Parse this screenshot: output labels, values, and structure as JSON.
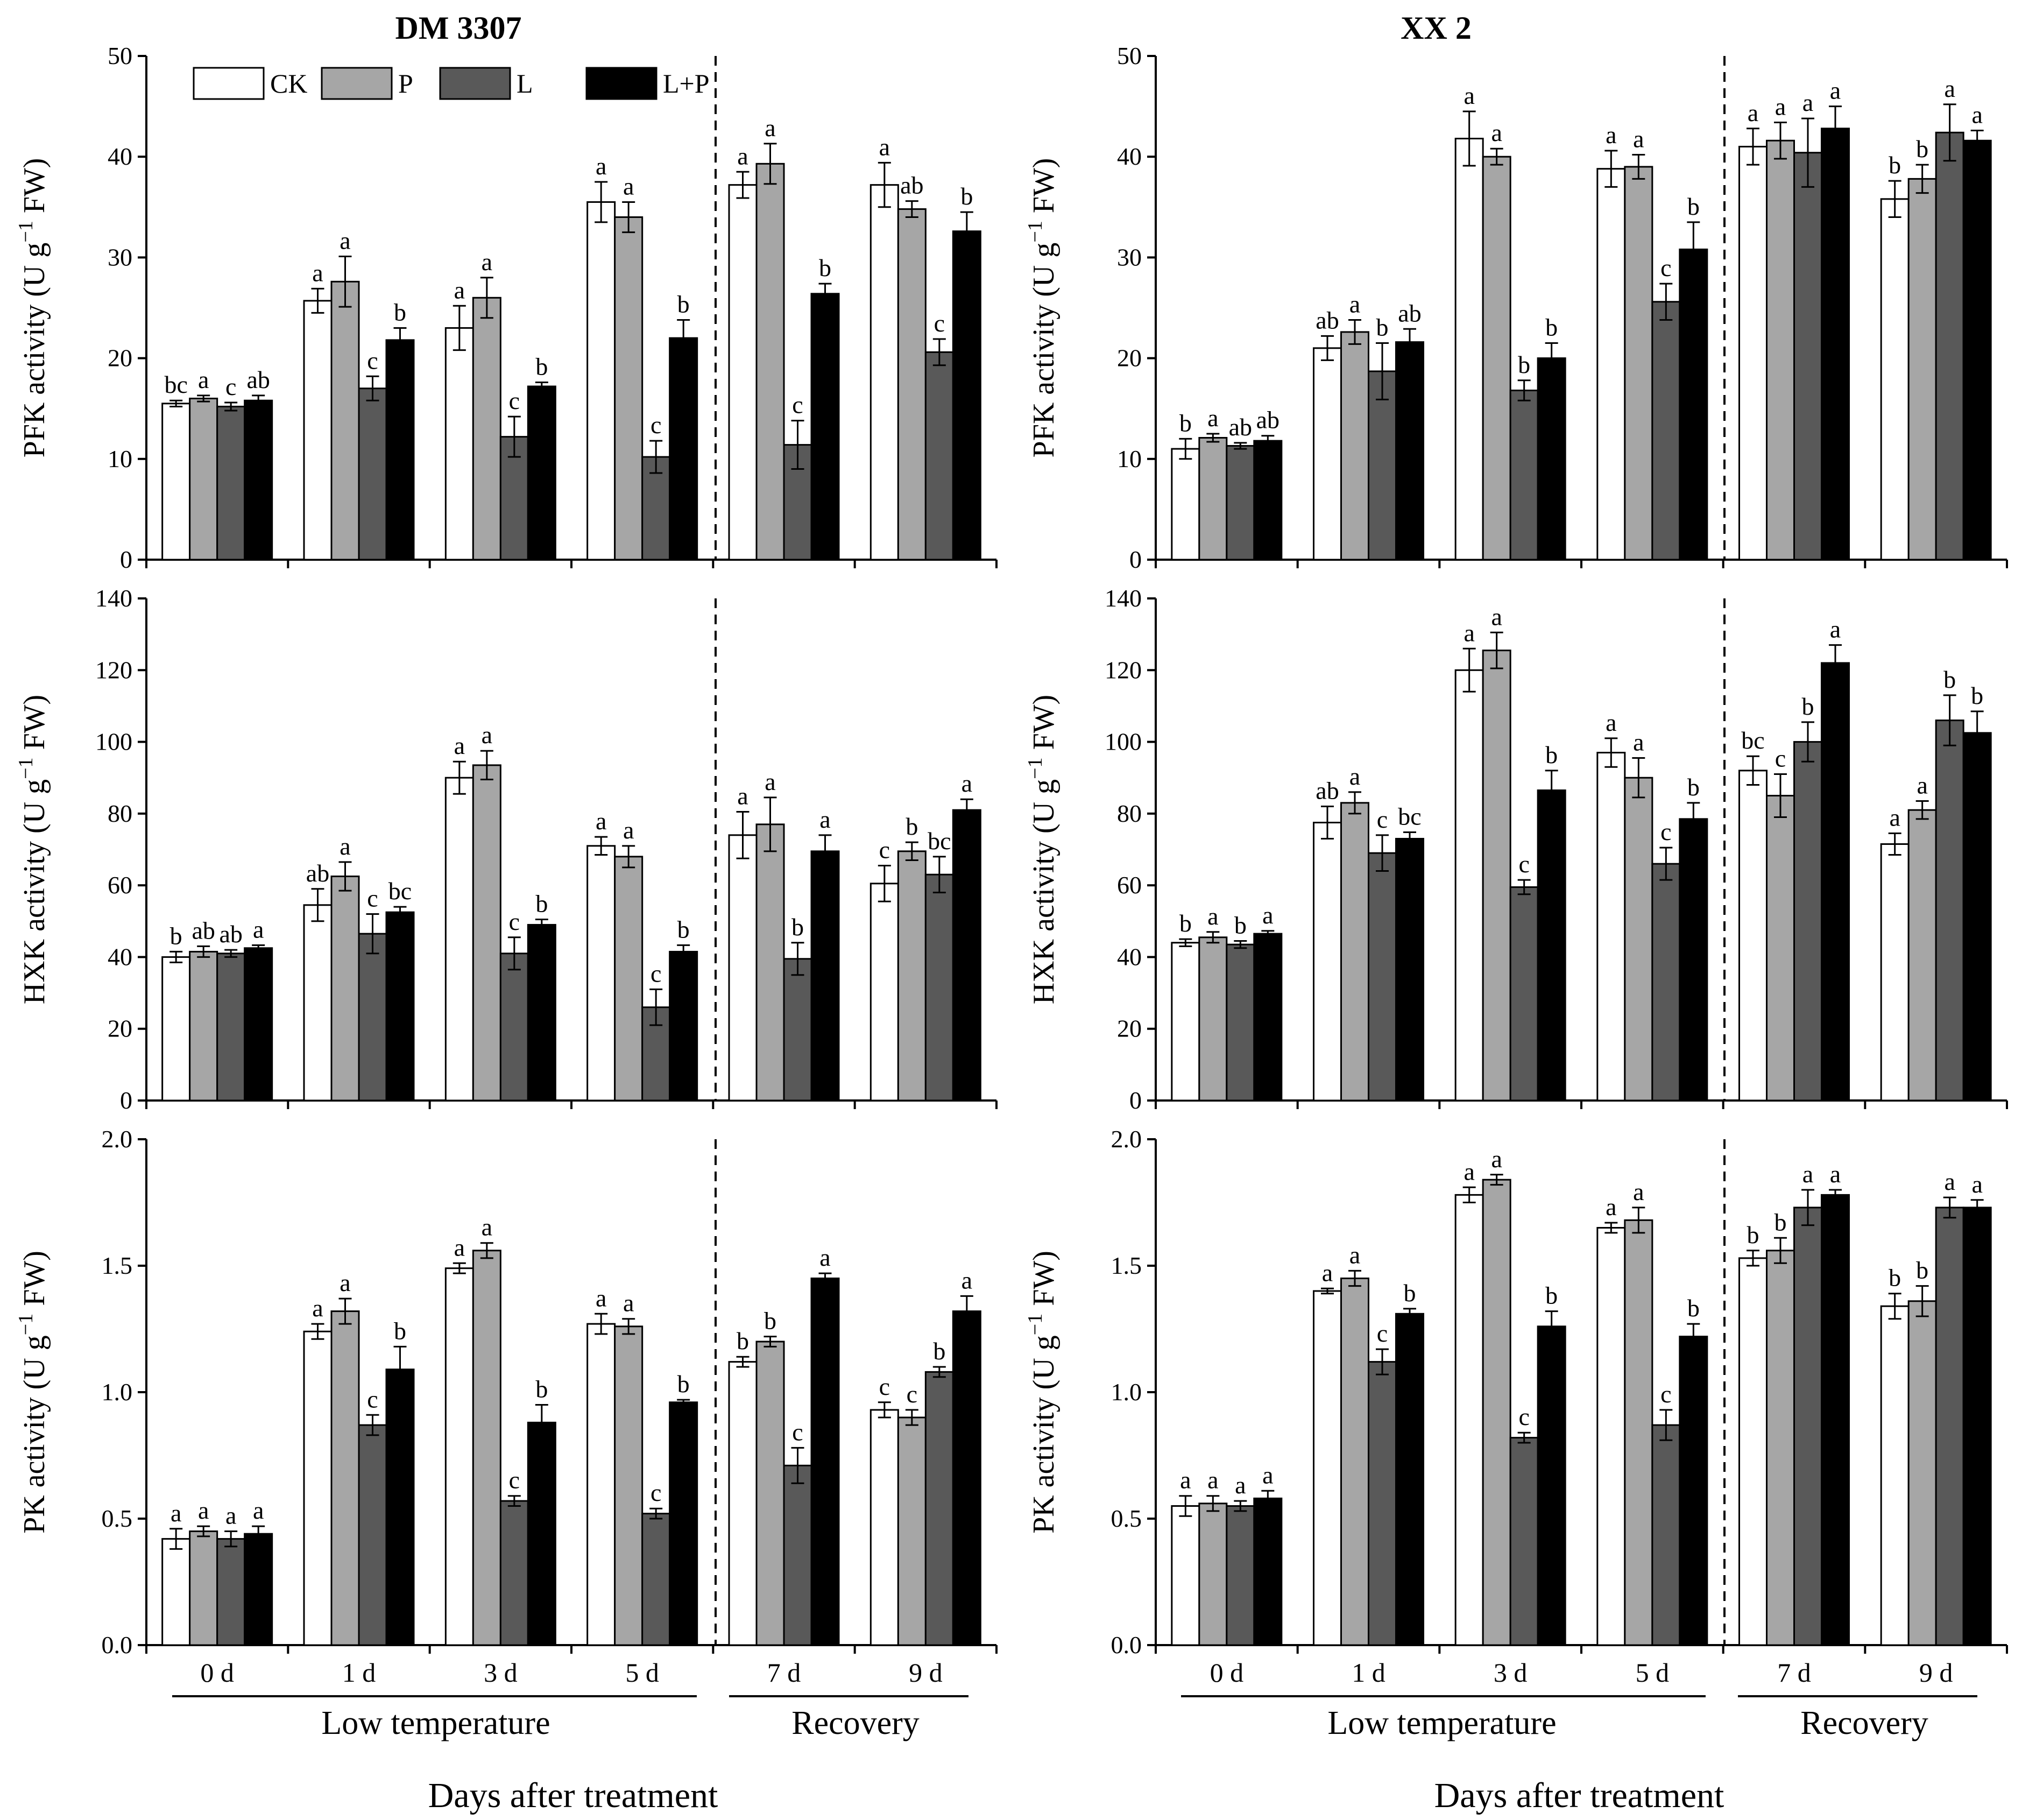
{
  "figure": {
    "xlabel": "Days after treatment",
    "group_labels": [
      "Low temperature",
      "Recovery"
    ],
    "legend": [
      {
        "label": "CK",
        "color": "#ffffff"
      },
      {
        "label": "P",
        "color": "#a6a6a6"
      },
      {
        "label": "L",
        "color": "#595959"
      },
      {
        "label": "L+P",
        "color": "#000000"
      }
    ]
  },
  "chart_data": [
    {
      "type": "bar",
      "panel": "DM 3307 PFK",
      "title": "DM 3307",
      "ylabel": "PFK activity (U g−1 FW)",
      "ylim": [
        0,
        50
      ],
      "yticks": [
        0,
        10,
        20,
        30,
        40,
        50
      ],
      "categories": [
        "0 d",
        "1 d",
        "3 d",
        "5 d",
        "7 d",
        "9 d"
      ],
      "series": [
        {
          "name": "CK",
          "values": [
            15.5,
            25.7,
            23.0,
            35.5,
            37.2,
            37.2
          ],
          "errors": [
            0.3,
            1.2,
            2.2,
            2.0,
            1.3,
            2.2
          ],
          "letters": [
            "bc",
            "a",
            "a",
            "a",
            "a",
            "a"
          ]
        },
        {
          "name": "P",
          "values": [
            16.0,
            27.6,
            26.0,
            34.0,
            39.3,
            34.8
          ],
          "errors": [
            0.3,
            2.5,
            2.0,
            1.5,
            2.0,
            0.8
          ],
          "letters": [
            "a",
            "a",
            "a",
            "a",
            "a",
            "ab"
          ]
        },
        {
          "name": "L",
          "values": [
            15.2,
            17.0,
            12.2,
            10.2,
            11.4,
            20.6
          ],
          "errors": [
            0.4,
            1.2,
            2.0,
            1.6,
            2.4,
            1.3
          ],
          "letters": [
            "c",
            "c",
            "c",
            "c",
            "c",
            "c"
          ]
        },
        {
          "name": "L+P",
          "values": [
            15.8,
            21.8,
            17.2,
            22.0,
            26.4,
            32.6
          ],
          "errors": [
            0.5,
            1.2,
            0.4,
            1.8,
            1.0,
            1.9
          ],
          "letters": [
            "ab",
            "b",
            "b",
            "b",
            "b",
            "b"
          ]
        }
      ]
    },
    {
      "type": "bar",
      "panel": "XX 2 PFK",
      "title": "XX 2",
      "ylabel": "PFK activity (U g−1 FW)",
      "ylim": [
        0,
        50
      ],
      "yticks": [
        0,
        10,
        20,
        30,
        40,
        50
      ],
      "categories": [
        "0 d",
        "1 d",
        "3 d",
        "5 d",
        "7 d",
        "9 d"
      ],
      "series": [
        {
          "name": "CK",
          "values": [
            11.0,
            21.0,
            41.8,
            38.8,
            41.0,
            35.8
          ],
          "errors": [
            1.0,
            1.2,
            2.7,
            1.8,
            1.8,
            1.8
          ],
          "letters": [
            "b",
            "ab",
            "a",
            "a",
            "a",
            "b"
          ]
        },
        {
          "name": "P",
          "values": [
            12.1,
            22.6,
            40.0,
            39.0,
            41.6,
            37.8
          ],
          "errors": [
            0.4,
            1.2,
            0.8,
            1.2,
            1.8,
            1.4
          ],
          "letters": [
            "a",
            "a",
            "a",
            "a",
            "a",
            "b"
          ]
        },
        {
          "name": "L",
          "values": [
            11.3,
            18.7,
            16.8,
            25.6,
            40.4,
            42.4
          ],
          "errors": [
            0.3,
            2.8,
            1.0,
            1.8,
            3.4,
            2.8
          ],
          "letters": [
            "ab",
            "b",
            "b",
            "c",
            "a",
            "a"
          ]
        },
        {
          "name": "L+P",
          "values": [
            11.8,
            21.6,
            20.0,
            30.8,
            42.8,
            41.6
          ],
          "errors": [
            0.5,
            1.3,
            1.5,
            2.7,
            2.2,
            1.0
          ],
          "letters": [
            "ab",
            "ab",
            "b",
            "b",
            "a",
            "a"
          ]
        }
      ]
    },
    {
      "type": "bar",
      "panel": "DM 3307 HXK",
      "title": "",
      "ylabel": "HXK activity (U g−1 FW)",
      "ylim": [
        0,
        140
      ],
      "yticks": [
        0,
        20,
        40,
        60,
        80,
        100,
        120,
        140
      ],
      "categories": [
        "0 d",
        "1 d",
        "3 d",
        "5 d",
        "7 d",
        "9 d"
      ],
      "series": [
        {
          "name": "CK",
          "values": [
            40.0,
            54.5,
            90.0,
            71.0,
            74.0,
            60.5
          ],
          "errors": [
            1.5,
            4.5,
            4.5,
            2.5,
            6.5,
            5.0
          ],
          "letters": [
            "b",
            "ab",
            "a",
            "a",
            "a",
            "c"
          ]
        },
        {
          "name": "P",
          "values": [
            41.5,
            62.5,
            93.5,
            68.0,
            77.0,
            69.5
          ],
          "errors": [
            1.5,
            4.0,
            4.0,
            3.0,
            7.5,
            2.5
          ],
          "letters": [
            "ab",
            "a",
            "a",
            "a",
            "a",
            "b"
          ]
        },
        {
          "name": "L",
          "values": [
            41.0,
            46.5,
            41.0,
            26.0,
            39.5,
            63.0
          ],
          "errors": [
            1.0,
            5.5,
            4.5,
            5.0,
            4.5,
            5.0
          ],
          "letters": [
            "ab",
            "c",
            "c",
            "c",
            "b",
            "bc"
          ]
        },
        {
          "name": "L+P",
          "values": [
            42.5,
            52.5,
            49.0,
            41.5,
            69.5,
            81.0
          ],
          "errors": [
            0.8,
            1.5,
            1.5,
            1.8,
            4.5,
            3.0
          ],
          "letters": [
            "a",
            "bc",
            "b",
            "b",
            "a",
            "a"
          ]
        }
      ]
    },
    {
      "type": "bar",
      "panel": "XX 2 HXK",
      "title": "",
      "ylabel": "HXK activity (U g−1 FW)",
      "ylim": [
        0,
        140
      ],
      "yticks": [
        0,
        20,
        40,
        60,
        80,
        100,
        120,
        140
      ],
      "categories": [
        "0 d",
        "1 d",
        "3 d",
        "5 d",
        "7 d",
        "9 d"
      ],
      "series": [
        {
          "name": "CK",
          "values": [
            44.0,
            77.5,
            120.0,
            97.0,
            92.0,
            71.5
          ],
          "errors": [
            1.0,
            4.5,
            6.0,
            4.0,
            4.0,
            3.0
          ],
          "letters": [
            "b",
            "ab",
            "a",
            "a",
            "bc",
            "a"
          ]
        },
        {
          "name": "P",
          "values": [
            45.5,
            83.0,
            125.5,
            90.0,
            85.0,
            81.0
          ],
          "errors": [
            1.5,
            3.0,
            5.0,
            5.5,
            6.0,
            2.5
          ],
          "letters": [
            "a",
            "a",
            "a",
            "a",
            "c",
            "a"
          ]
        },
        {
          "name": "L",
          "values": [
            43.5,
            69.0,
            59.5,
            66.0,
            100.0,
            106.0
          ],
          "errors": [
            1.0,
            5.0,
            2.0,
            4.5,
            5.5,
            7.0
          ],
          "letters": [
            "b",
            "c",
            "c",
            "c",
            "b",
            "b"
          ]
        },
        {
          "name": "L+P",
          "values": [
            46.5,
            73.0,
            86.5,
            78.5,
            122.0,
            102.5
          ],
          "errors": [
            0.8,
            1.8,
            5.5,
            4.5,
            5.0,
            6.0
          ],
          "letters": [
            "a",
            "bc",
            "b",
            "b",
            "a",
            "b"
          ]
        }
      ]
    },
    {
      "type": "bar",
      "panel": "DM 3307 PK",
      "title": "",
      "ylabel": "PK activity (U g−1 FW)",
      "ylim": [
        0,
        2
      ],
      "yticks": [
        0.0,
        0.5,
        1.0,
        1.5,
        2.0
      ],
      "categories": [
        "0 d",
        "1 d",
        "3 d",
        "5 d",
        "7 d",
        "9 d"
      ],
      "series": [
        {
          "name": "CK",
          "values": [
            0.42,
            1.24,
            1.49,
            1.27,
            1.12,
            0.93
          ],
          "errors": [
            0.04,
            0.03,
            0.02,
            0.04,
            0.02,
            0.03
          ],
          "letters": [
            "a",
            "a",
            "a",
            "a",
            "b",
            "c"
          ]
        },
        {
          "name": "P",
          "values": [
            0.45,
            1.32,
            1.56,
            1.26,
            1.2,
            0.9
          ],
          "errors": [
            0.02,
            0.05,
            0.03,
            0.03,
            0.02,
            0.03
          ],
          "letters": [
            "a",
            "a",
            "a",
            "a",
            "b",
            "c"
          ]
        },
        {
          "name": "L",
          "values": [
            0.42,
            0.87,
            0.57,
            0.52,
            0.71,
            1.08
          ],
          "errors": [
            0.03,
            0.04,
            0.02,
            0.02,
            0.07,
            0.02
          ],
          "letters": [
            "a",
            "c",
            "c",
            "c",
            "c",
            "b"
          ]
        },
        {
          "name": "L+P",
          "values": [
            0.44,
            1.09,
            0.88,
            0.96,
            1.45,
            1.32
          ],
          "errors": [
            0.03,
            0.09,
            0.07,
            0.01,
            0.02,
            0.06
          ],
          "letters": [
            "a",
            "b",
            "b",
            "b",
            "a",
            "a"
          ]
        }
      ]
    },
    {
      "type": "bar",
      "panel": "XX 2 PK",
      "title": "",
      "ylabel": "PK activity (U g−1 FW)",
      "ylim": [
        0,
        2
      ],
      "yticks": [
        0.0,
        0.5,
        1.0,
        1.5,
        2.0
      ],
      "categories": [
        "0 d",
        "1 d",
        "3 d",
        "5 d",
        "7 d",
        "9 d"
      ],
      "series": [
        {
          "name": "CK",
          "values": [
            0.55,
            1.4,
            1.78,
            1.65,
            1.53,
            1.34
          ],
          "errors": [
            0.04,
            0.01,
            0.03,
            0.02,
            0.03,
            0.05
          ],
          "letters": [
            "a",
            "a",
            "a",
            "a",
            "b",
            "b"
          ]
        },
        {
          "name": "P",
          "values": [
            0.56,
            1.45,
            1.84,
            1.68,
            1.56,
            1.36
          ],
          "errors": [
            0.03,
            0.03,
            0.02,
            0.05,
            0.05,
            0.06
          ],
          "letters": [
            "a",
            "a",
            "a",
            "a",
            "b",
            "b"
          ]
        },
        {
          "name": "L",
          "values": [
            0.55,
            1.12,
            0.82,
            0.87,
            1.73,
            1.73
          ],
          "errors": [
            0.02,
            0.05,
            0.02,
            0.06,
            0.07,
            0.04
          ],
          "letters": [
            "a",
            "c",
            "c",
            "c",
            "a",
            "a"
          ]
        },
        {
          "name": "L+P",
          "values": [
            0.58,
            1.31,
            1.26,
            1.22,
            1.78,
            1.73
          ],
          "errors": [
            0.03,
            0.02,
            0.06,
            0.05,
            0.02,
            0.03
          ],
          "letters": [
            "a",
            "b",
            "b",
            "b",
            "a",
            "a"
          ]
        }
      ]
    }
  ]
}
